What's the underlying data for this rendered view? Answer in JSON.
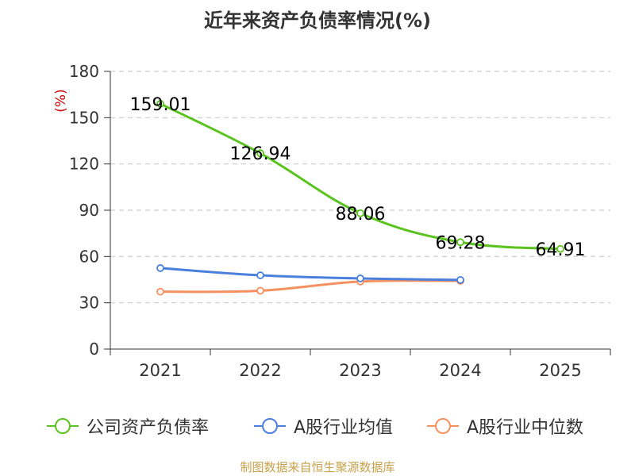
{
  "title": "近年来资产负债率情况(%)",
  "source": "制图数据来自恒生聚源数据库",
  "chart_data": {
    "type": "line",
    "categories": [
      "2021",
      "2022",
      "2023",
      "2024",
      "2025"
    ],
    "ylabel": "(%)",
    "ylim": [
      0,
      180
    ],
    "yticks": [
      0,
      30,
      60,
      90,
      120,
      150,
      180
    ],
    "grid": true,
    "legend_position": "bottom",
    "series": [
      {
        "name": "公司资产负债率",
        "color": "#5ac31e",
        "values": [
          159.01,
          126.94,
          88.06,
          69.28,
          64.91
        ],
        "labels": [
          "159.01",
          "126.94",
          "88.06",
          "69.28",
          "64.91"
        ]
      },
      {
        "name": "A股行业均值",
        "color": "#4a7fdc",
        "values": [
          52.5,
          47.8,
          45.8,
          44.8,
          null
        ]
      },
      {
        "name": "A股行业中位数",
        "color": "#f59060",
        "values": [
          37.2,
          37.8,
          43.8,
          44.2,
          null
        ]
      }
    ]
  }
}
